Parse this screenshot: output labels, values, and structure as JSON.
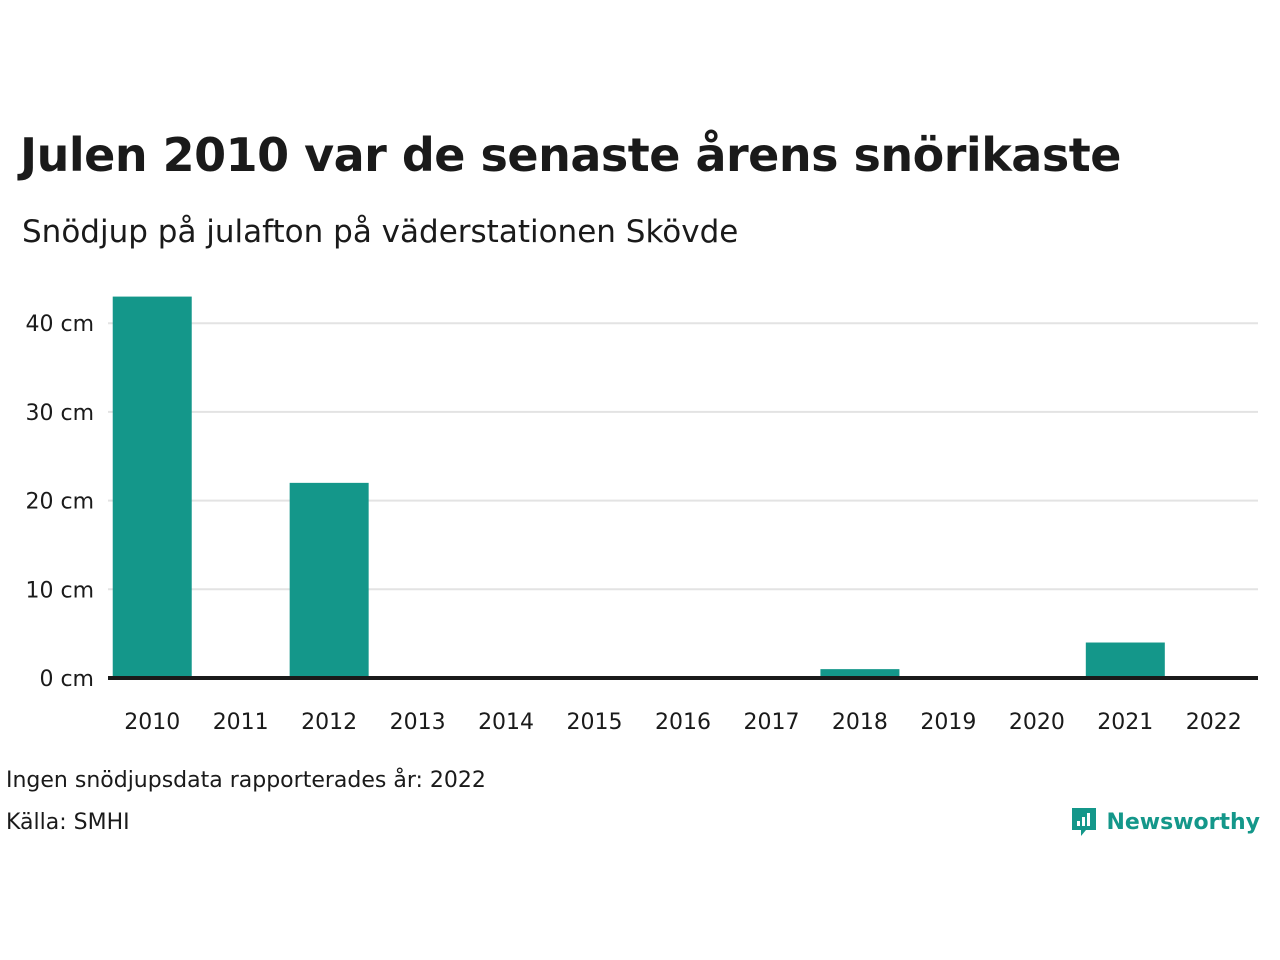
{
  "title": "Julen 2010 var de senaste årens snörikaste",
  "subtitle": "Snödjup på julafton på väderstationen Skövde",
  "note": "Ingen snödjupsdata rapporterades år: 2022",
  "source": "Källa: SMHI",
  "brand": "Newsworthy",
  "colors": {
    "bar": "#14978a",
    "grid": "#e3e3e3",
    "axis": "#1a1a1a",
    "text": "#1a1a1a"
  },
  "chart_data": {
    "type": "bar",
    "title": "Julen 2010 var de senaste årens snörikaste",
    "subtitle": "Snödjup på julafton på väderstationen Skövde",
    "xlabel": "",
    "ylabel": "",
    "unit": "cm",
    "categories": [
      "2010",
      "2011",
      "2012",
      "2013",
      "2014",
      "2015",
      "2016",
      "2017",
      "2018",
      "2019",
      "2020",
      "2021",
      "2022"
    ],
    "values": [
      43,
      0,
      22,
      0,
      0,
      0,
      0,
      0,
      1,
      0,
      0,
      4,
      null
    ],
    "yticks": [
      0,
      10,
      20,
      30,
      40
    ],
    "ytick_labels": [
      "0 cm",
      "10 cm",
      "20 cm",
      "30 cm",
      "40 cm"
    ],
    "ylim": [
      0,
      45
    ],
    "grid": true
  }
}
